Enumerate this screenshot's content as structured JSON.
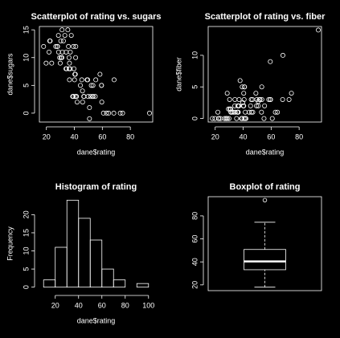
{
  "chart_data": [
    {
      "type": "scatter",
      "title": "Scatterplot of rating vs. sugars",
      "x_label": "dane$rating",
      "y_label": "dane$sugars",
      "color": "#ffffff",
      "x": [
        68.4,
        34.0,
        59.4,
        93.7,
        34.4,
        29.5,
        33.2,
        37.0,
        49.1,
        53.3,
        18.0,
        50.8,
        19.8,
        40.4,
        22.7,
        41.4,
        45.9,
        35.8,
        22.4,
        40.4,
        64.5,
        46.9,
        36.2,
        44.3,
        32.2,
        31.4,
        58.3,
        40.9,
        41.0,
        28.0,
        35.3,
        23.8,
        52.1,
        53.4,
        45.8,
        21.9,
        31.1,
        28.7,
        36.5,
        36.5,
        39.2,
        45.3,
        26.7,
        54.9,
        37.1,
        34.1,
        30.3,
        40.1,
        29.9,
        40.7,
        59.6,
        30.5,
        37.8,
        41.5,
        60.8,
        63.0,
        49.5,
        50.8,
        39.3,
        39.7,
        55.3,
        42.0,
        40.6,
        68.2,
        74.5,
        72.8,
        31.2,
        53.1,
        59.4,
        38.8,
        28.6,
        46.7,
        39.1,
        27.8,
        49.8,
        51.6,
        36.2
      ],
      "values": [
        6,
        8,
        5,
        0,
        8,
        10,
        14,
        8,
        6,
        5,
        12,
        1,
        9,
        7,
        13,
        3,
        2,
        12,
        13,
        7,
        0,
        3,
        10,
        5,
        13,
        11,
        7,
        10,
        12,
        12,
        15,
        9,
        5,
        3,
        4,
        11,
        10,
        11,
        6,
        9,
        3,
        6,
        12,
        3,
        11,
        11,
        13,
        6,
        9,
        7,
        2,
        10,
        14,
        3,
        0,
        0,
        6,
        -1,
        12,
        8,
        6,
        2,
        3,
        0,
        0,
        0,
        15,
        3,
        5,
        3,
        14,
        3,
        3,
        12,
        3,
        3,
        8
      ],
      "xlim": [
        15,
        96
      ],
      "xticks": [
        20,
        40,
        60,
        80
      ],
      "ylim": [
        -1.6,
        15.6
      ],
      "yticks": [
        0,
        5,
        10,
        15
      ]
    },
    {
      "type": "scatter",
      "title": "Scatterplot of rating vs. fiber",
      "x_label": "dane$rating",
      "y_label": "dane$fiber",
      "color": "#ffffff",
      "x": [
        68.4,
        34.0,
        59.4,
        93.7,
        34.4,
        29.5,
        33.2,
        37.0,
        49.1,
        53.3,
        18.0,
        50.8,
        19.8,
        40.4,
        22.7,
        41.4,
        45.9,
        35.8,
        22.4,
        40.4,
        64.5,
        46.9,
        36.2,
        44.3,
        32.2,
        31.4,
        58.3,
        40.9,
        41.0,
        28.0,
        35.3,
        23.8,
        52.1,
        53.4,
        45.8,
        21.9,
        31.1,
        28.7,
        36.5,
        36.5,
        39.2,
        45.3,
        26.7,
        54.9,
        37.1,
        34.1,
        30.3,
        40.1,
        29.9,
        40.7,
        59.6,
        30.5,
        37.8,
        41.5,
        60.8,
        63.0,
        49.5,
        50.8,
        39.3,
        39.7,
        55.3,
        42.0,
        40.6,
        68.2,
        74.5,
        72.8,
        31.2,
        53.1,
        59.4,
        38.8,
        28.6,
        46.7,
        39.1,
        27.8,
        49.8,
        51.6,
        36.2
      ],
      "values": [
        10,
        2,
        9,
        14,
        1,
        1.5,
        1,
        2,
        4,
        5,
        0,
        2,
        0,
        2,
        0,
        0,
        1,
        1,
        0,
        4,
        1,
        1,
        2,
        1,
        1,
        1,
        3,
        5,
        5,
        0,
        0,
        0,
        3,
        3,
        3,
        1,
        1.5,
        0,
        1,
        2,
        0,
        2,
        0,
        0,
        3,
        3,
        3,
        2,
        0,
        3,
        3,
        1.5,
        6,
        1,
        0,
        1,
        2,
        2.7,
        5,
        2.5,
        2,
        0,
        0,
        3,
        4,
        3,
        1,
        1,
        3,
        0,
        4,
        3,
        0,
        0,
        3,
        3,
        1
      ],
      "xlim": [
        15,
        96
      ],
      "xticks": [
        20,
        40,
        60,
        80
      ],
      "ylim": [
        -0.56,
        14.56
      ],
      "yticks": [
        0,
        5,
        10
      ]
    },
    {
      "type": "histogram",
      "title": "Histogram of rating",
      "x_label": "dane$rating",
      "y_label": "Frequency",
      "color": "#ffffff",
      "bins": [
        10,
        20,
        30,
        40,
        50,
        60,
        70,
        80,
        90,
        100
      ],
      "values": [
        2,
        11,
        24,
        19,
        13,
        5,
        2,
        0,
        1
      ],
      "xlim": [
        6.4,
        103.6
      ],
      "xticks": [
        20,
        40,
        60,
        80,
        100
      ],
      "ylim": [
        -0.96,
        24.96
      ],
      "yticks": [
        0,
        5,
        10,
        15,
        20
      ]
    },
    {
      "type": "box",
      "title": "Boxplot of rating",
      "color": "#ffffff",
      "min": 18.0,
      "q1": 33.2,
      "median": 40.4,
      "q3": 50.8,
      "max": 74.5,
      "outliers": [
        93.7
      ],
      "ylim": [
        15,
        96.7
      ],
      "yticks": [
        20,
        40,
        60,
        80
      ]
    }
  ]
}
